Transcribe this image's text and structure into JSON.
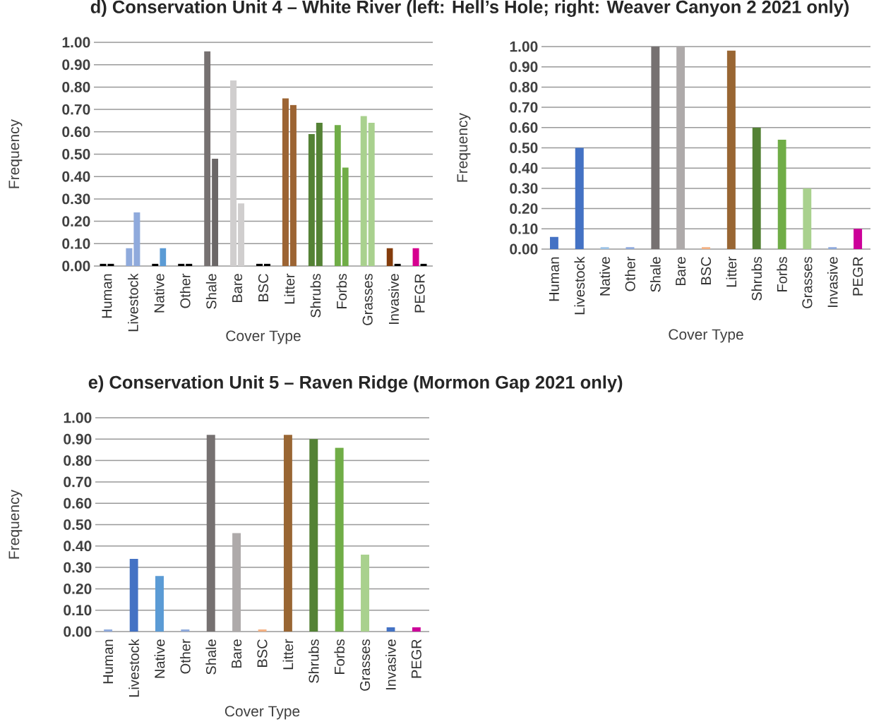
{
  "chart_data": [
    {
      "type": "bar",
      "title": "d) Conservation Unit 4 – White River (left: Hell’s Hole; right: Weaver Canyon 2 2021 only)",
      "xlabel": "Cover Type",
      "ylabel": "Frequency",
      "categories": [
        "Human",
        "Livestock",
        "Native",
        "Other",
        "Shale",
        "Bare",
        "BSC",
        "Litter",
        "Shrubs",
        "Forbs",
        "Grasses",
        "Invasive",
        "PEGR"
      ],
      "series": [
        {
          "values": [
            0.01,
            0.08,
            0.01,
            0.01,
            0.96,
            0.83,
            0.01,
            0.75,
            0.59,
            0.63,
            0.67,
            0.08,
            0.08
          ],
          "colors": [
            "#000000",
            "#8faadc",
            "#000000",
            "#000000",
            "#767171",
            "#d0cece",
            "#000000",
            "#9c6433",
            "#548235",
            "#70ad47",
            "#a9d18e",
            "#843c0c",
            "#d6008f"
          ]
        },
        {
          "values": [
            0.01,
            0.24,
            0.08,
            0.01,
            0.48,
            0.28,
            0.01,
            0.72,
            0.64,
            0.44,
            0.64,
            0.01,
            0.01
          ],
          "colors": [
            "#000000",
            "#8faadc",
            "#5b9bd5",
            "#000000",
            "#6b6767",
            "#d0cece",
            "#000000",
            "#9c6433",
            "#548235",
            "#70ad47",
            "#a9d18e",
            "#000000",
            "#000000"
          ]
        }
      ],
      "ylim": [
        0,
        1
      ],
      "yticks": [
        {
          "value": 0,
          "label": "0.00"
        },
        {
          "value": 0.1,
          "label": "0.10"
        },
        {
          "value": 0.2,
          "label": "0.20"
        },
        {
          "value": 0.3,
          "label": "0.30"
        },
        {
          "value": 0.4,
          "label": "0.40"
        },
        {
          "value": 0.5,
          "label": "0.50"
        },
        {
          "value": 0.6,
          "label": "0.60"
        },
        {
          "value": 0.7,
          "label": "0.70"
        },
        {
          "value": 0.8,
          "label": "0.80"
        },
        {
          "value": 0.9,
          "label": "0.90"
        },
        {
          "value": 1,
          "label": "1.00"
        }
      ],
      "grid": "y"
    },
    {
      "type": "bar",
      "xlabel": "Cover Type",
      "ylabel": "Frequency",
      "categories": [
        "Human",
        "Livestock",
        "Native",
        "Other",
        "Shale",
        "Bare",
        "BSC",
        "Litter",
        "Shrubs",
        "Forbs",
        "Grasses",
        "Invasive",
        "PEGR"
      ],
      "series": [
        {
          "values": [
            0.06,
            0.5,
            0.01,
            0.01,
            1.0,
            1.0,
            0.01,
            0.98,
            0.6,
            0.54,
            0.3,
            0.01,
            0.1
          ],
          "colors": [
            "#4472c4",
            "#4472c4",
            "#9dc3e6",
            "#8faadc",
            "#767171",
            "#aeaaaa",
            "#f4b183",
            "#996633",
            "#548235",
            "#70ad47",
            "#a9d18e",
            "#8faadc",
            "#cc0099"
          ]
        }
      ],
      "ylim": [
        0,
        1
      ],
      "yticks": [
        {
          "value": 0,
          "label": "0.00"
        },
        {
          "value": 0.1,
          "label": "0.10"
        },
        {
          "value": 0.2,
          "label": "0.20"
        },
        {
          "value": 0.3,
          "label": "0.30"
        },
        {
          "value": 0.4,
          "label": "0.40"
        },
        {
          "value": 0.5,
          "label": "0.50"
        },
        {
          "value": 0.6,
          "label": "0.60"
        },
        {
          "value": 0.7,
          "label": "0.70"
        },
        {
          "value": 0.8,
          "label": "0.80"
        },
        {
          "value": 0.9,
          "label": "0.90"
        },
        {
          "value": 1,
          "label": "1.00"
        }
      ],
      "grid": "y"
    },
    {
      "type": "bar",
      "title": "e) Conservation Unit 5 – Raven Ridge (Mormon Gap 2021 only)",
      "xlabel": "Cover Type",
      "ylabel": "Frequency",
      "categories": [
        "Human",
        "Livestock",
        "Native",
        "Other",
        "Shale",
        "Bare",
        "BSC",
        "Litter",
        "Shrubs",
        "Forbs",
        "Grasses",
        "Invasive",
        "PEGR"
      ],
      "series": [
        {
          "values": [
            0.01,
            0.34,
            0.26,
            0.01,
            0.92,
            0.46,
            0.01,
            0.92,
            0.9,
            0.86,
            0.36,
            0.02,
            0.02
          ],
          "colors": [
            "#8faadc",
            "#4472c4",
            "#5b9bd5",
            "#8faadc",
            "#767171",
            "#aeaaaa",
            "#f4b183",
            "#996633",
            "#548235",
            "#70ad47",
            "#a9d18e",
            "#4472c4",
            "#cc0099"
          ]
        }
      ],
      "ylim": [
        0,
        1
      ],
      "yticks": [
        {
          "value": 0,
          "label": "0.00"
        },
        {
          "value": 0.1,
          "label": "0.10"
        },
        {
          "value": 0.2,
          "label": "0.20"
        },
        {
          "value": 0.3,
          "label": "0.30"
        },
        {
          "value": 0.4,
          "label": "0.40"
        },
        {
          "value": 0.5,
          "label": "0.50"
        },
        {
          "value": 0.6,
          "label": "0.60"
        },
        {
          "value": 0.7,
          "label": "0.70"
        },
        {
          "value": 0.8,
          "label": "0.80"
        },
        {
          "value": 0.9,
          "label": "0.90"
        },
        {
          "value": 1,
          "label": "1.00"
        }
      ],
      "grid": "y"
    }
  ]
}
